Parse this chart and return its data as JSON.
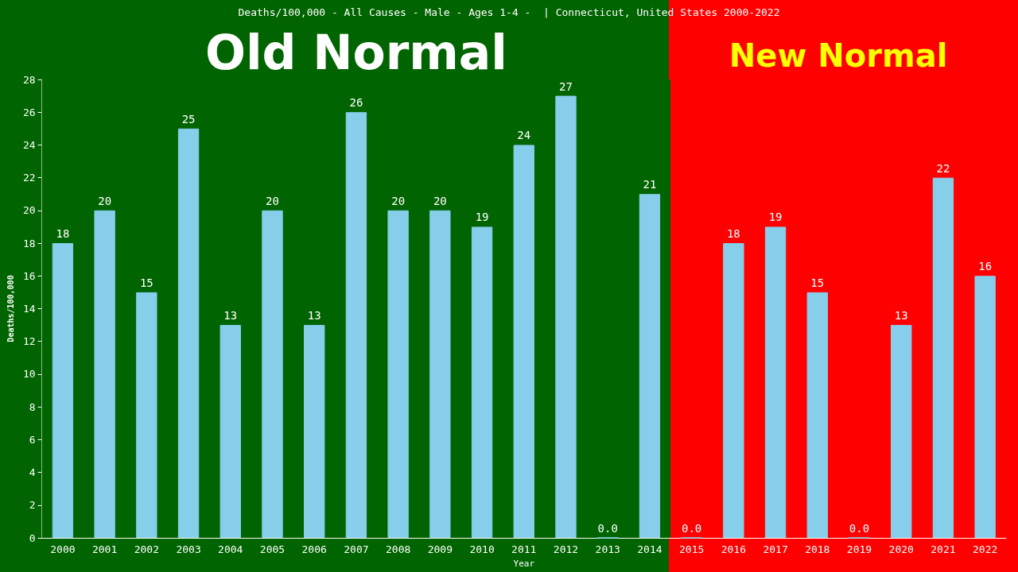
{
  "chart_data": {
    "type": "bar",
    "title": "Deaths/100,000 - All Causes - Male - Ages 1-4 -  | Connecticut, United States 2000-2022",
    "xlabel": "Year",
    "ylabel": "Deaths/100,000",
    "categories": [
      "2000",
      "2001",
      "2002",
      "2003",
      "2004",
      "2005",
      "2006",
      "2007",
      "2008",
      "2009",
      "2010",
      "2011",
      "2012",
      "2013",
      "2014",
      "2015",
      "2016",
      "2017",
      "2018",
      "2019",
      "2020",
      "2021",
      "2022"
    ],
    "values": [
      18,
      20,
      15,
      25,
      13,
      20,
      13,
      26,
      20,
      20,
      19,
      24,
      27,
      0,
      21,
      0,
      18,
      19,
      15,
      0,
      13,
      22,
      16
    ],
    "value_labels": [
      "18",
      "20",
      "15",
      "25",
      "13",
      "20",
      "13",
      "26",
      "20",
      "20",
      "19",
      "24",
      "27",
      "0.0",
      "21",
      "0.0",
      "18",
      "19",
      "15",
      "0.0",
      "13",
      "22",
      "16"
    ],
    "color": "#87ceeb",
    "ylim": [
      0,
      28
    ],
    "yticks": [
      0,
      2,
      4,
      6,
      8,
      10,
      12,
      14,
      16,
      18,
      20,
      22,
      24,
      26,
      28
    ],
    "grid": false,
    "bands": [
      {
        "axis": "x",
        "from": "2000",
        "to": "2014",
        "label": "Old Normal",
        "color": "#006400"
      },
      {
        "axis": "x",
        "from": "2015",
        "to": "2022",
        "label": "New Normal",
        "color": "#ff0000"
      }
    ]
  }
}
